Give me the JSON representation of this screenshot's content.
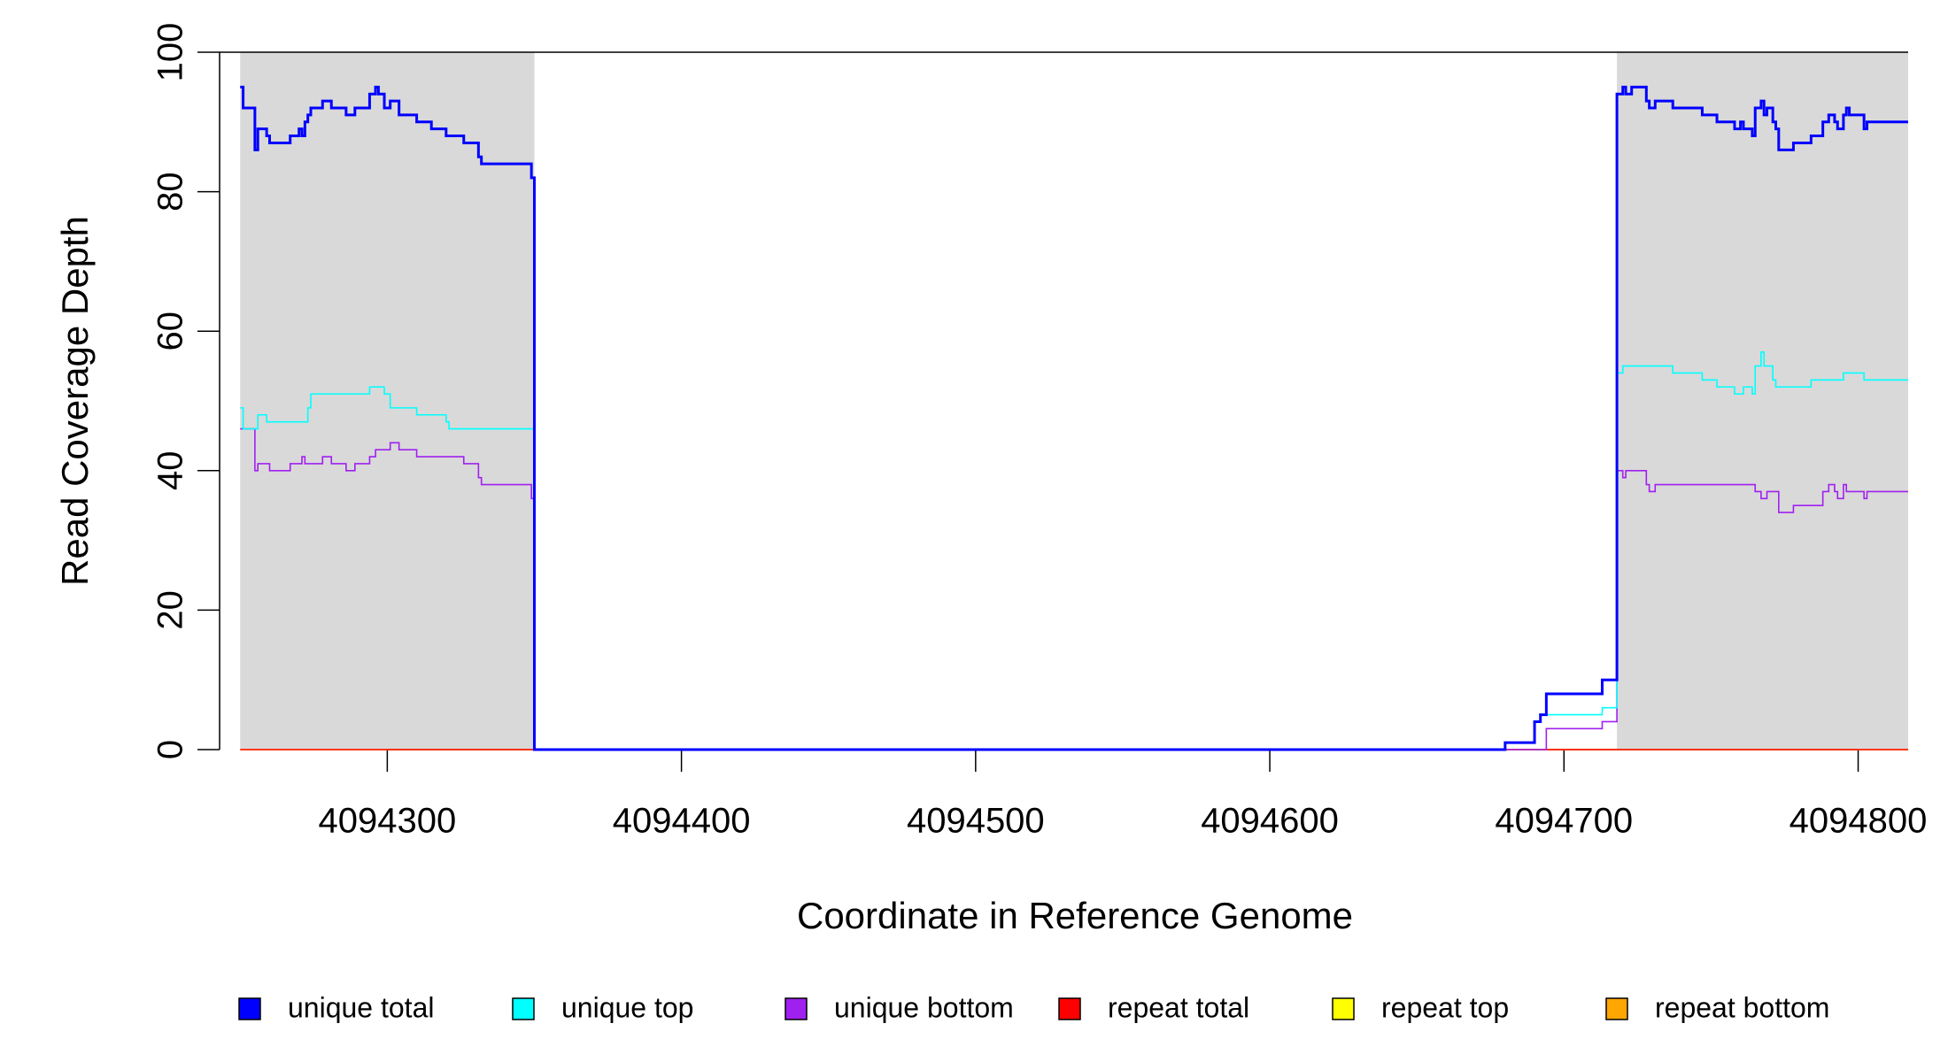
{
  "chart_data": {
    "type": "step",
    "xlabel": "Coordinate in Reference Genome",
    "ylabel": "Read Coverage Depth",
    "xlim": [
      4094243,
      4094817
    ],
    "ylim": [
      0,
      100
    ],
    "xticks": [
      4094300,
      4094400,
      4094500,
      4094600,
      4094700,
      4094800
    ],
    "yticks": [
      0,
      20,
      40,
      60,
      80,
      100
    ],
    "shaded": [
      [
        4094250,
        4094350
      ],
      [
        4094718,
        4094817
      ]
    ],
    "shade_color": "#d9d9d9",
    "x": [
      4094250,
      4094251,
      4094255,
      4094256,
      4094259,
      4094260,
      4094267,
      4094270,
      4094271,
      4094272,
      4094273,
      4094274,
      4094278,
      4094281,
      4094286,
      4094289,
      4094294,
      4094296,
      4094297,
      4094299,
      4094301,
      4094304,
      4094310,
      4094315,
      4094320,
      4094321,
      4094326,
      4094331,
      4094332,
      4094349,
      4094350,
      4094680,
      4094690,
      4094692,
      4094694,
      4094713,
      4094718,
      4094720,
      4094721,
      4094723,
      4094728,
      4094729,
      4094731,
      4094733,
      4094737,
      4094747,
      4094752,
      4094758,
      4094760,
      4094761,
      4094764,
      4094765,
      4094767,
      4094768,
      4094769,
      4094771,
      4094772,
      4094773,
      4094778,
      4094784,
      4094788,
      4094790,
      4094792,
      4094793,
      4094795,
      4094796,
      4094797,
      4094802,
      4094803,
      4094817
    ],
    "series": [
      {
        "name": "unique total",
        "color": "#0000ff",
        "values": [
          95,
          92,
          86,
          89,
          88,
          87,
          88,
          89,
          88,
          90,
          91,
          92,
          93,
          92,
          91,
          92,
          94,
          95,
          94,
          92,
          93,
          91,
          90,
          89,
          88,
          88,
          87,
          85,
          84,
          82,
          0,
          1,
          4,
          5,
          8,
          10,
          94,
          95,
          94,
          95,
          93,
          92,
          93,
          93,
          92,
          91,
          90,
          89,
          90,
          89,
          88,
          92,
          93,
          91,
          92,
          90,
          89,
          86,
          87,
          88,
          90,
          91,
          90,
          89,
          91,
          92,
          91,
          89,
          90,
          90
        ]
      },
      {
        "name": "unique top",
        "color": "#00ffff",
        "values": [
          49,
          46,
          46,
          48,
          47,
          47,
          47,
          47,
          47,
          47,
          49,
          51,
          51,
          51,
          51,
          51,
          52,
          52,
          52,
          51,
          49,
          49,
          48,
          48,
          47,
          46,
          46,
          46,
          46,
          46,
          0,
          1,
          4,
          5,
          5,
          6,
          54,
          55,
          55,
          55,
          55,
          55,
          55,
          55,
          54,
          53,
          52,
          51,
          51,
          52,
          51,
          55,
          57,
          55,
          55,
          53,
          52,
          52,
          52,
          53,
          53,
          53,
          53,
          53,
          54,
          54,
          54,
          53,
          53,
          53
        ]
      },
      {
        "name": "unique bottom",
        "color": "#a020f0",
        "values": [
          46,
          46,
          40,
          41,
          41,
          40,
          41,
          41,
          42,
          41,
          41,
          41,
          42,
          41,
          40,
          41,
          42,
          43,
          43,
          43,
          44,
          43,
          42,
          42,
          42,
          42,
          41,
          39,
          38,
          36,
          0,
          0,
          0,
          0,
          3,
          4,
          40,
          39,
          40,
          40,
          38,
          37,
          38,
          38,
          38,
          38,
          38,
          38,
          38,
          38,
          38,
          37,
          36,
          36,
          37,
          37,
          37,
          34,
          35,
          35,
          37,
          38,
          37,
          36,
          38,
          37,
          37,
          36,
          37,
          37
        ]
      },
      {
        "name": "repeat total",
        "color": "#ff0000",
        "values": [
          0,
          0,
          0,
          0,
          0,
          0,
          0,
          0,
          0,
          0,
          0,
          0,
          0,
          0,
          0,
          0,
          0,
          0,
          0,
          0,
          0,
          0,
          0,
          0,
          0,
          0,
          0,
          0,
          0,
          0,
          0,
          0,
          0,
          0,
          0,
          0,
          0,
          0,
          0,
          0,
          0,
          0,
          0,
          0,
          0,
          0,
          0,
          0,
          0,
          0,
          0,
          0,
          0,
          0,
          0,
          0,
          0,
          0,
          0,
          0,
          0,
          0,
          0,
          0,
          0,
          0,
          0,
          0,
          0,
          0
        ]
      },
      {
        "name": "repeat top",
        "color": "#ffff00",
        "values": [
          0,
          0,
          0,
          0,
          0,
          0,
          0,
          0,
          0,
          0,
          0,
          0,
          0,
          0,
          0,
          0,
          0,
          0,
          0,
          0,
          0,
          0,
          0,
          0,
          0,
          0,
          0,
          0,
          0,
          0,
          0,
          0,
          0,
          0,
          0,
          0,
          0,
          0,
          0,
          0,
          0,
          0,
          0,
          0,
          0,
          0,
          0,
          0,
          0,
          0,
          0,
          0,
          0,
          0,
          0,
          0,
          0,
          0,
          0,
          0,
          0,
          0,
          0,
          0,
          0,
          0,
          0,
          0,
          0,
          0
        ]
      },
      {
        "name": "repeat bottom",
        "color": "#ffa500",
        "values": [
          0,
          0,
          0,
          0,
          0,
          0,
          0,
          0,
          0,
          0,
          0,
          0,
          0,
          0,
          0,
          0,
          0,
          0,
          0,
          0,
          0,
          0,
          0,
          0,
          0,
          0,
          0,
          0,
          0,
          0,
          0,
          0,
          0,
          0,
          0,
          0,
          0,
          0,
          0,
          0,
          0,
          0,
          0,
          0,
          0,
          0,
          0,
          0,
          0,
          0,
          0,
          0,
          0,
          0,
          0,
          0,
          0,
          0,
          0,
          0,
          0,
          0,
          0,
          0,
          0,
          0,
          0,
          0,
          0,
          0
        ]
      }
    ]
  }
}
